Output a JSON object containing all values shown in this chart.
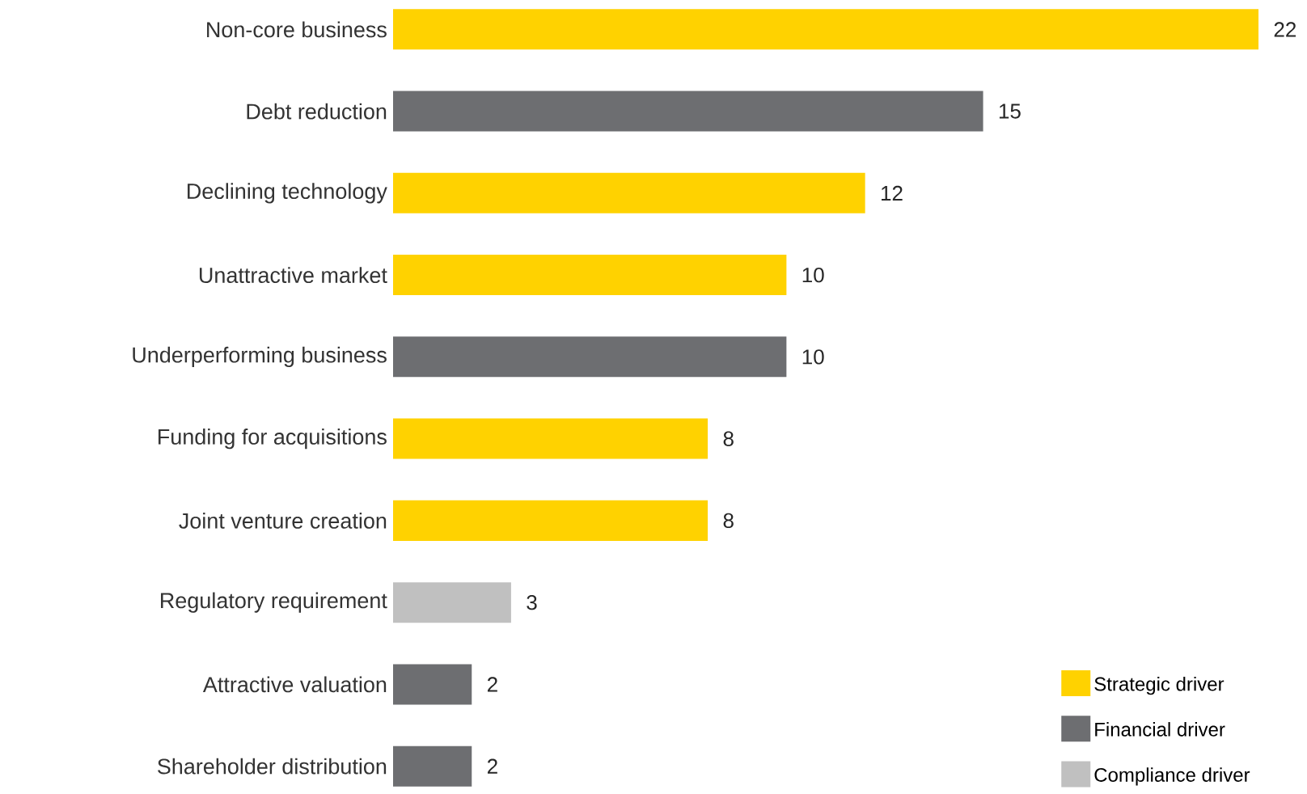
{
  "chart_data": {
    "type": "bar",
    "orientation": "horizontal",
    "categories": [
      "Non-core business",
      "Debt reduction",
      "Declining technology",
      "Unattractive market",
      "Underperforming business",
      "Funding for acquisitions",
      "Joint venture creation",
      "Regulatory requirement",
      "Attractive valuation",
      "Shareholder distribution"
    ],
    "series": [
      {
        "name": "Strategic driver",
        "color": "#ffd200",
        "values": [
          22,
          null,
          12,
          10,
          null,
          8,
          8,
          null,
          null,
          null
        ]
      },
      {
        "name": "Financial driver",
        "color": "#6d6e71",
        "values": [
          null,
          15,
          null,
          null,
          10,
          null,
          null,
          null,
          2,
          2
        ]
      },
      {
        "name": "Compliance driver",
        "color": "#c0c0c0",
        "values": [
          null,
          null,
          null,
          null,
          null,
          null,
          null,
          3,
          null,
          null
        ]
      }
    ],
    "data_labels": true,
    "legend": "bottom right"
  }
}
